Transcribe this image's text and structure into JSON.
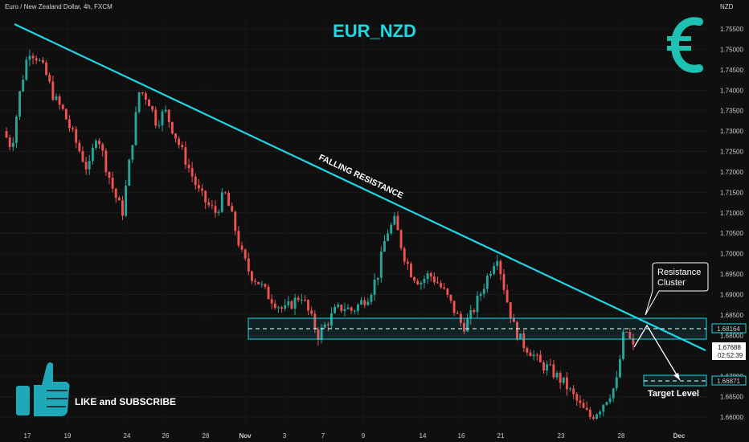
{
  "header": {
    "symbol_info": "Euro / New Zealand Dollar, 4h, FXCM",
    "currency": "NZD",
    "title": "EUR_NZD",
    "promo": "LIKE and SUBSCRIBE"
  },
  "icons": {
    "brand": "euro-icon",
    "promo": "thumbs-up-icon"
  },
  "colors": {
    "background": "#0f0f0f",
    "accent": "#1fd8e6",
    "up": "#26a69a",
    "down": "#ef5350"
  },
  "chart_data": {
    "type": "candlestick",
    "title": "EUR_NZD",
    "ylabel": "NZD",
    "ylim": [
      1.6575,
      1.7592
    ],
    "yticks": [
      "1.75500",
      "1.75000",
      "1.74500",
      "1.74000",
      "1.73500",
      "1.73000",
      "1.72500",
      "1.72000",
      "1.71500",
      "1.71000",
      "1.70500",
      "1.70000",
      "1.69500",
      "1.69000",
      "1.68500",
      "1.68000",
      "1.67500",
      "1.67000",
      "1.66500",
      "1.66000"
    ],
    "xticks": [
      "17",
      "19",
      "24",
      "26",
      "28",
      "Nov",
      "3",
      "7",
      "9",
      "14",
      "16",
      "21",
      "23",
      "28",
      "Dec"
    ],
    "price_labels": {
      "resistance": "1.68164",
      "current": "1.67688",
      "countdown": "02:52:39",
      "target": "1.66871"
    },
    "close_path": [
      1.73,
      1.726,
      1.74,
      1.75,
      1.748,
      1.744,
      1.738,
      1.735,
      1.73,
      1.725,
      1.72,
      1.73,
      1.722,
      1.715,
      1.71,
      1.725,
      1.74,
      1.738,
      1.732,
      1.735,
      1.73,
      1.725,
      1.72,
      1.715,
      1.712,
      1.71,
      1.715,
      1.708,
      1.7,
      1.695,
      1.693,
      1.69,
      1.688,
      1.686,
      1.688,
      1.69,
      1.685,
      1.68,
      1.683,
      1.686,
      1.687,
      1.686,
      1.688,
      1.69,
      1.695,
      1.705,
      1.708,
      1.7,
      1.695,
      1.693,
      1.695,
      1.693,
      1.69,
      1.686,
      1.682,
      1.685,
      1.69,
      1.695,
      1.7,
      1.69,
      1.682,
      1.678,
      1.676,
      1.673,
      1.672,
      1.67,
      1.668,
      1.665,
      1.662,
      1.66,
      1.662,
      1.665,
      1.668,
      1.682,
      1.6769
    ],
    "annotations": {
      "trendline": "FALLING RESISTANCE",
      "cluster": "Resistance\nCluster",
      "target": "Target Level"
    }
  }
}
